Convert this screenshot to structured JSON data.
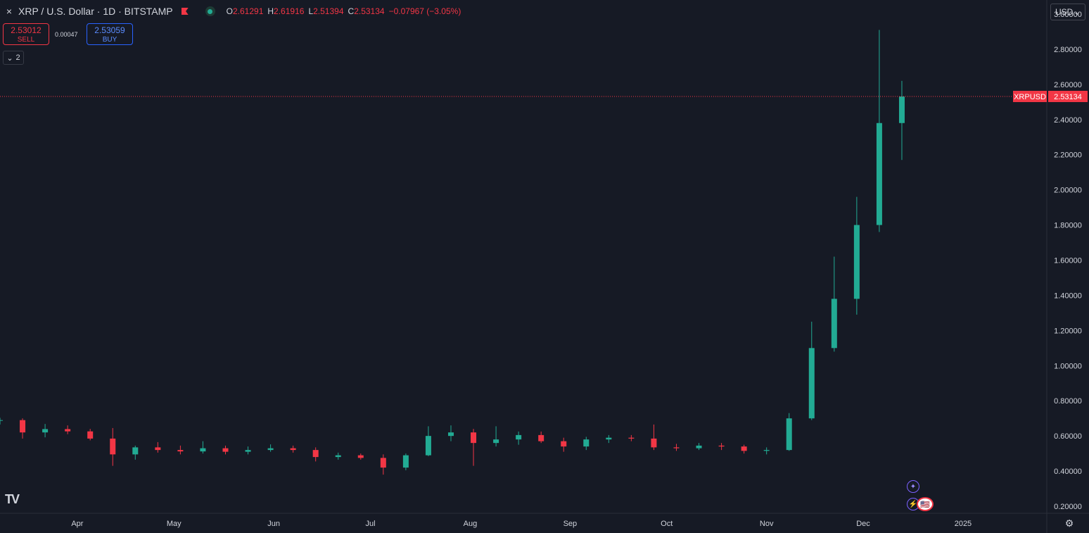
{
  "header": {
    "close_icon": "×",
    "symbol_title": "XRP / U.S. Dollar · 1D · BITSTAMP",
    "ohlc": {
      "o_label": "O",
      "o_value": "2.61291",
      "h_label": "H",
      "h_value": "2.61916",
      "l_label": "L",
      "l_value": "2.51394",
      "c_label": "C",
      "c_value": "2.53134",
      "change": "−0.07967 (−3.05%)"
    }
  },
  "trade": {
    "sell_price": "2.53012",
    "sell_label": "SELL",
    "spread": "0.00047",
    "buy_price": "2.53059",
    "buy_label": "BUY"
  },
  "indicator_toggle": {
    "count": "2"
  },
  "currency": {
    "label": "USD"
  },
  "colors": {
    "up": "#22ab94",
    "down": "#f23645",
    "background": "#161a25",
    "text": "#d1d4dc"
  },
  "chart_data": {
    "type": "candlestick",
    "symbol": "XRPUSD",
    "last_price": "2.53134",
    "ylim": [
      0.16,
      3.08
    ],
    "y_ticks": [
      "0.20000",
      "0.40000",
      "0.60000",
      "0.80000",
      "1.00000",
      "1.20000",
      "1.40000",
      "1.60000",
      "1.80000",
      "2.00000",
      "2.20000",
      "2.40000",
      "2.60000",
      "2.80000",
      "3.00000"
    ],
    "x_ticks": [
      "Apr",
      "May",
      "Jun",
      "Jul",
      "Aug",
      "Sep",
      "Oct",
      "Nov",
      "Dec",
      "2025"
    ],
    "x_range": [
      "2024-03-08",
      "2025-01-27"
    ],
    "grid": false,
    "series": [
      {
        "date": "2024-03-08",
        "ohlc": [
          0.689,
          0.703,
          0.665,
          0.69
        ]
      },
      {
        "date": "2024-03-15",
        "ohlc": [
          0.69,
          0.7,
          0.585,
          0.62
        ]
      },
      {
        "date": "2024-03-22",
        "ohlc": [
          0.62,
          0.668,
          0.592,
          0.639
        ]
      },
      {
        "date": "2024-03-29",
        "ohlc": [
          0.639,
          0.66,
          0.61,
          0.626
        ]
      },
      {
        "date": "2024-04-05",
        "ohlc": [
          0.626,
          0.64,
          0.575,
          0.585
        ]
      },
      {
        "date": "2024-04-12",
        "ohlc": [
          0.585,
          0.645,
          0.43,
          0.495
        ]
      },
      {
        "date": "2024-04-19",
        "ohlc": [
          0.495,
          0.545,
          0.465,
          0.535
        ]
      },
      {
        "date": "2024-04-26",
        "ohlc": [
          0.535,
          0.565,
          0.505,
          0.52
        ]
      },
      {
        "date": "2024-05-03",
        "ohlc": [
          0.52,
          0.545,
          0.495,
          0.512
        ]
      },
      {
        "date": "2024-05-10",
        "ohlc": [
          0.512,
          0.57,
          0.5,
          0.53
        ]
      },
      {
        "date": "2024-05-17",
        "ohlc": [
          0.53,
          0.545,
          0.495,
          0.51
        ]
      },
      {
        "date": "2024-05-24",
        "ohlc": [
          0.51,
          0.54,
          0.495,
          0.52
        ]
      },
      {
        "date": "2024-05-31",
        "ohlc": [
          0.52,
          0.552,
          0.51,
          0.53
        ]
      },
      {
        "date": "2024-06-07",
        "ohlc": [
          0.53,
          0.545,
          0.505,
          0.52
        ]
      },
      {
        "date": "2024-06-14",
        "ohlc": [
          0.52,
          0.535,
          0.455,
          0.48
        ]
      },
      {
        "date": "2024-06-21",
        "ohlc": [
          0.48,
          0.505,
          0.465,
          0.49
        ]
      },
      {
        "date": "2024-06-28",
        "ohlc": [
          0.49,
          0.5,
          0.465,
          0.475
        ]
      },
      {
        "date": "2024-07-05",
        "ohlc": [
          0.475,
          0.495,
          0.38,
          0.42
        ]
      },
      {
        "date": "2024-07-12",
        "ohlc": [
          0.42,
          0.5,
          0.405,
          0.49
        ]
      },
      {
        "date": "2024-07-19",
        "ohlc": [
          0.49,
          0.655,
          0.485,
          0.6
        ]
      },
      {
        "date": "2024-07-26",
        "ohlc": [
          0.6,
          0.66,
          0.57,
          0.62
        ]
      },
      {
        "date": "2024-08-02",
        "ohlc": [
          0.62,
          0.64,
          0.43,
          0.56
        ]
      },
      {
        "date": "2024-08-09",
        "ohlc": [
          0.56,
          0.655,
          0.54,
          0.58
        ]
      },
      {
        "date": "2024-08-16",
        "ohlc": [
          0.58,
          0.625,
          0.55,
          0.605
        ]
      },
      {
        "date": "2024-08-23",
        "ohlc": [
          0.605,
          0.625,
          0.56,
          0.57
        ]
      },
      {
        "date": "2024-08-30",
        "ohlc": [
          0.57,
          0.59,
          0.51,
          0.54
        ]
      },
      {
        "date": "2024-09-06",
        "ohlc": [
          0.54,
          0.595,
          0.52,
          0.58
        ]
      },
      {
        "date": "2024-09-13",
        "ohlc": [
          0.58,
          0.605,
          0.56,
          0.59
        ]
      },
      {
        "date": "2024-09-20",
        "ohlc": [
          0.59,
          0.605,
          0.57,
          0.585
        ]
      },
      {
        "date": "2024-09-27",
        "ohlc": [
          0.585,
          0.665,
          0.52,
          0.535
        ]
      },
      {
        "date": "2024-10-04",
        "ohlc": [
          0.535,
          0.555,
          0.515,
          0.53
        ]
      },
      {
        "date": "2024-10-11",
        "ohlc": [
          0.53,
          0.56,
          0.52,
          0.545
        ]
      },
      {
        "date": "2024-10-18",
        "ohlc": [
          0.545,
          0.56,
          0.52,
          0.54
        ]
      },
      {
        "date": "2024-10-25",
        "ohlc": [
          0.54,
          0.55,
          0.5,
          0.515
        ]
      },
      {
        "date": "2024-11-01",
        "ohlc": [
          0.515,
          0.535,
          0.495,
          0.52
        ]
      },
      {
        "date": "2024-11-08",
        "ohlc": [
          0.52,
          0.73,
          0.515,
          0.7
        ]
      },
      {
        "date": "2024-11-15",
        "ohlc": [
          0.7,
          1.25,
          0.69,
          1.1
        ]
      },
      {
        "date": "2024-11-22",
        "ohlc": [
          1.1,
          1.62,
          1.08,
          1.38
        ]
      },
      {
        "date": "2024-11-29",
        "ohlc": [
          1.38,
          1.96,
          1.29,
          1.8
        ]
      },
      {
        "date": "2024-12-06",
        "ohlc": [
          1.8,
          2.91,
          1.76,
          2.38
        ]
      },
      {
        "date": "2024-12-13",
        "ohlc": [
          2.38,
          2.62,
          2.17,
          2.531
        ]
      }
    ]
  },
  "events": {
    "star_icon": "✦",
    "bolt_icon": "⚡",
    "flag_icon": "🇺🇸"
  },
  "footer": {
    "logo": "TV",
    "settings_icon": "⚙"
  }
}
